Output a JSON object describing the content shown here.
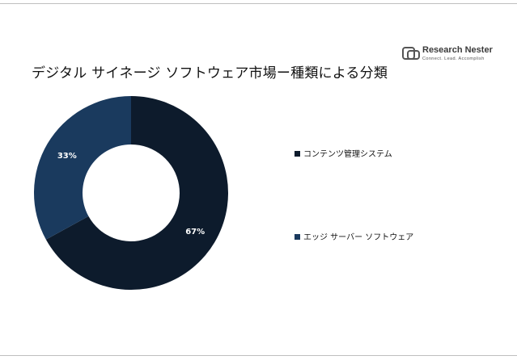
{
  "title": "デジタル サイネージ ソフトウェア市場ー種類による分類",
  "logo": {
    "brand_a": "Research",
    "brand_b": "Nester",
    "tagline": "Connect. Lead. Accomplish"
  },
  "chart_data": {
    "type": "pie",
    "donut": true,
    "categories": [
      "コンテンツ管理システム",
      "エッジ サーバー ソフトウェア"
    ],
    "values": [
      67,
      33
    ],
    "labels": [
      "67%",
      "33%"
    ],
    "colors": [
      "#0d1b2c",
      "#1a3a5e"
    ],
    "legend_position": "right"
  }
}
